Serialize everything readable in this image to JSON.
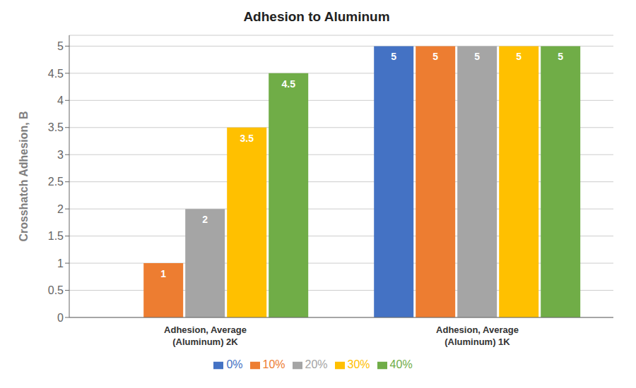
{
  "chart_data": {
    "type": "bar",
    "title": "Adhesion to Aluminum",
    "ylabel": "Crosshatch Adhesion, B",
    "categories": [
      "Adhesion, Average\n(Aluminum) 2K",
      "Adhesion, Average\n(Aluminum) 1K"
    ],
    "series": [
      {
        "name": "0%",
        "color": "#4472c4",
        "values": [
          0,
          5
        ]
      },
      {
        "name": "10%",
        "color": "#ed7d31",
        "values": [
          1,
          5
        ]
      },
      {
        "name": "20%",
        "color": "#a5a5a5",
        "values": [
          2,
          5
        ]
      },
      {
        "name": "30%",
        "color": "#ffc000",
        "values": [
          3.5,
          5
        ]
      },
      {
        "name": "40%",
        "color": "#70ad47",
        "values": [
          4.5,
          5
        ]
      }
    ],
    "ylim": [
      0,
      5.2
    ],
    "yticks": [
      0,
      0.5,
      1,
      1.5,
      2,
      2.5,
      3,
      3.5,
      4,
      4.5,
      5
    ],
    "grid": true,
    "legend": "bottom",
    "data_labels": true
  }
}
